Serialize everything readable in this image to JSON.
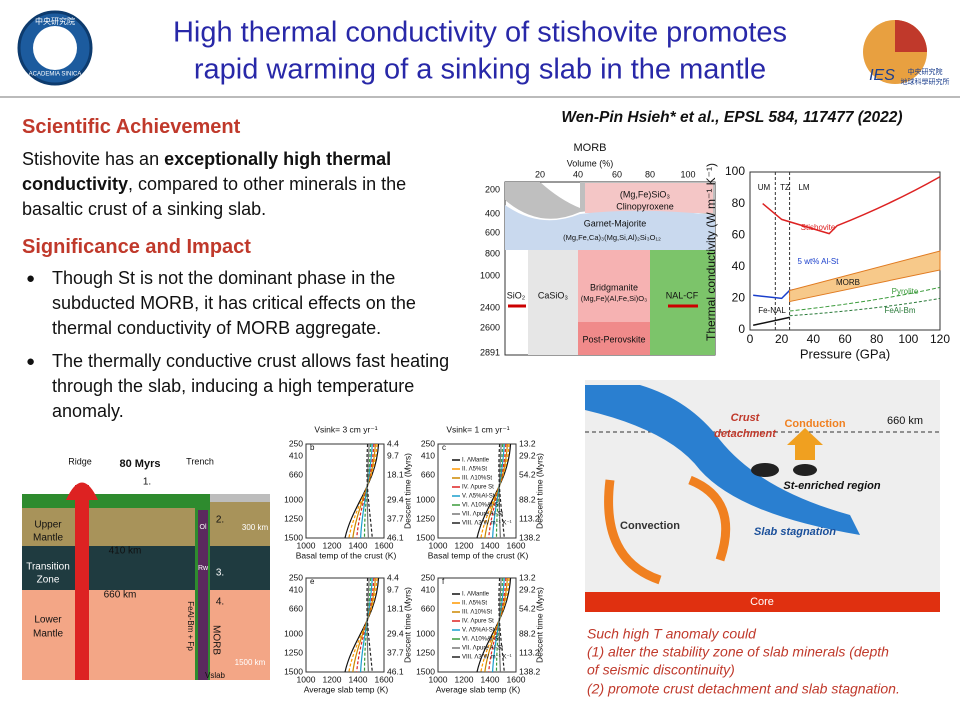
{
  "header": {
    "title": [
      "High thermal conductivity of stishovite promotes",
      "rapid warming of a sinking slab in the mantle"
    ],
    "left_logo": [
      "中央研究院",
      "ACADEMIA SINICA"
    ],
    "right_logo": [
      "IES",
      "中央研究院",
      "地球科學研究所"
    ]
  },
  "citation": "Wen-Pin Hsieh* et al., EPSL 584, 117477 (2022)",
  "achievement": {
    "heading": "Scientific Achievement",
    "text": [
      {
        "text": "Stishovite has an "
      },
      {
        "text": "exceptionally high thermal conductivity",
        "bold": true
      },
      {
        "text": ", compared to other minerals in the basaltic crust of a sinking slab."
      }
    ]
  },
  "significance": {
    "heading": "Significance and Impact",
    "bullets": [
      "Though St is not the dominant phase in the subducted MORB, it has critical effects on the thermal conductivity of MORB aggregate.",
      "The thermally conductive crust allows fast heating through the slab, inducing a high temperature anomaly."
    ]
  },
  "phase_diagram": {
    "title": "MORB",
    "volume_label": "Volume (%)",
    "volume_ticks": [
      "20",
      "40",
      "60",
      "80",
      "100"
    ],
    "depth_ticks": [
      "200",
      "400",
      "600",
      "800",
      "1000",
      "2400",
      "2600",
      "2891"
    ],
    "labels": [
      "(Mg,Fe)SiO₃",
      "Clinopyroxene",
      "Garnet-Majorite",
      "(Mg,Fe,Ca)₃(Mg,Si,Al)₂Si₃O₁₂",
      "SiO₂",
      "CaSiO₃",
      "Bridgmanite",
      "(Mg,Fe)(Al,Fe,Si)O₃",
      "NAL-CF",
      "Post-Perovskite"
    ]
  },
  "conductivity_chart": {
    "y_label": "Thermal conductivity (W m⁻¹ K⁻¹)",
    "x_label": "Pressure (GPa)",
    "xticks": [
      "0",
      "20",
      "40",
      "60",
      "80",
      "100",
      "120"
    ],
    "yticks": [
      "0",
      "20",
      "40",
      "60",
      "80",
      "100"
    ],
    "labels": [
      "UM",
      "TZ",
      "LM",
      "Stishovite",
      "5 wt% Al-St",
      "MORB",
      "Pyrolite",
      "FeAl-Bm",
      "Fe-NAL"
    ]
  },
  "slab_diagram": {
    "labels": [
      "Ridge",
      "80 Myrs",
      "Trench",
      "1.",
      "2.",
      "3.",
      "4.",
      "300 km",
      "Upper",
      "Mantle",
      "410 km",
      "Transition",
      "Zone",
      "660 km",
      "Lower",
      "Mantle",
      "Ol",
      "Rw",
      "FeAl-Bm + Fp",
      "MORB",
      "1500 km",
      "Vslab"
    ]
  },
  "model_panels": {
    "letters": [
      "b",
      "c",
      "e",
      "f"
    ],
    "titles": [
      "Vsink= 3 cm yr⁻¹",
      "Vsink= 1 cm yr⁻¹"
    ],
    "depth_ticks": [
      "250",
      "410",
      "660",
      "1000",
      "1250",
      "1500"
    ],
    "time_ticks_3": [
      "4.4",
      "9.7",
      "18.1",
      "29.4",
      "37.7",
      "46.1"
    ],
    "time_ticks_1": [
      "13.2",
      "29.2",
      "54.2",
      "88.2",
      "113.2",
      "138.2"
    ],
    "temp_ticks": [
      "1000",
      "1200",
      "1400",
      "1600"
    ],
    "x_labels": [
      "Basal temp of the crust (K)",
      "Average slab temp (K)"
    ],
    "time_label": "Descent time (Myrs)",
    "legend": [
      "I. ΛMantle",
      "II. Λ5%St",
      "III. Λ10%St",
      "IV. Λpure St",
      "V. Λ5%Al-St",
      "VI. Λ10%Al-St",
      "VII. Λpure Al-St",
      "VIII. Λ3 W m⁻¹ K⁻¹"
    ]
  },
  "cartoon": {
    "labels": [
      "660 km",
      "Crust",
      "detachment",
      "Conduction",
      "St-enriched region",
      "Convection",
      "Slab stagnation",
      "Core"
    ]
  },
  "caption": [
    "Such high T anomaly could",
    "(1) alter the stability zone of slab minerals (depth",
    "of seismic discontinuity)",
    "(2) promote crust detachment and slab stagnation."
  ]
}
